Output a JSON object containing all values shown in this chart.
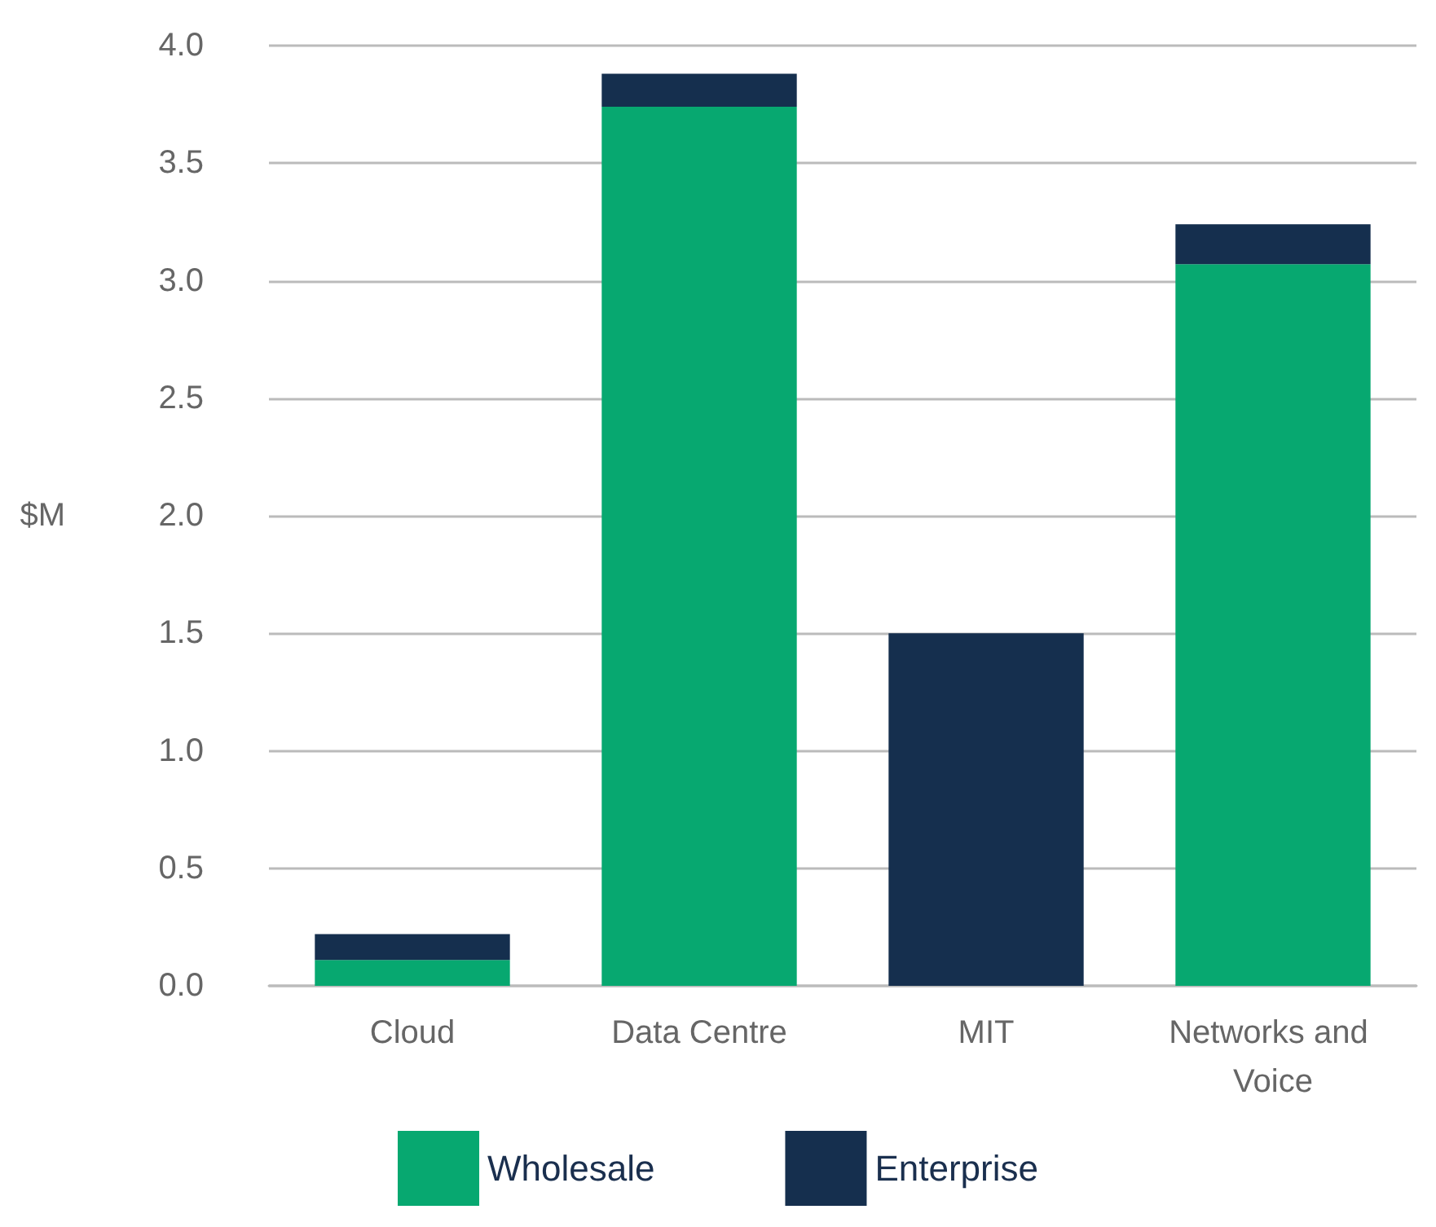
{
  "chart_data": {
    "type": "bar",
    "stacked": true,
    "ylabel": "$M",
    "categories": [
      "Cloud",
      "Data Centre",
      "MIT",
      "Networks and Voice"
    ],
    "series": [
      {
        "name": "Wholesale",
        "color": "#07a870",
        "values": [
          0.11,
          3.74,
          0,
          3.07
        ]
      },
      {
        "name": "Enterprise",
        "color": "#152f4e",
        "values": [
          0.11,
          0.14,
          1.5,
          0.17
        ]
      }
    ],
    "ylim": [
      0,
      4
    ],
    "yticks": [
      {
        "value": 0,
        "label": "0.0"
      },
      0.5,
      {
        "value": 1,
        "label": "1.0"
      },
      1.5,
      {
        "value": 2,
        "label": "2.0"
      },
      2.5,
      {
        "value": 3,
        "label": "3.0"
      },
      3.5,
      {
        "value": 4,
        "label": "4.0"
      }
    ],
    "grid": "y",
    "legend": "bottom"
  }
}
